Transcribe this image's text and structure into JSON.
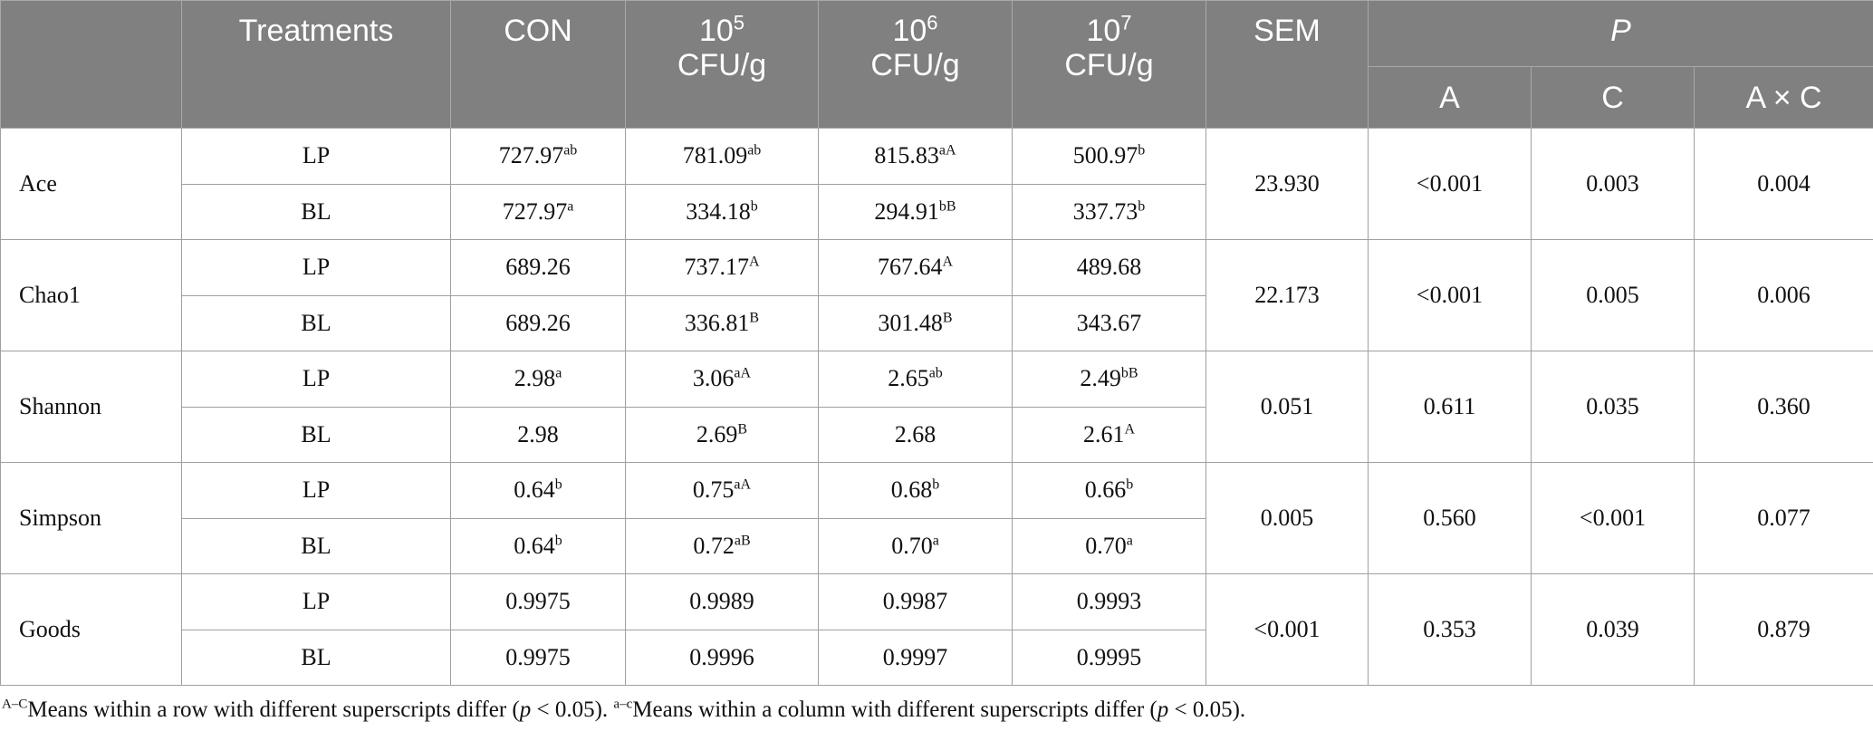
{
  "table": {
    "header": {
      "first": "Treatments",
      "con": "CON",
      "doses": [
        {
          "base": "10",
          "sup": "5",
          "unit": "CFU/g"
        },
        {
          "base": "10",
          "sup": "6",
          "unit": "CFU/g"
        },
        {
          "base": "10",
          "sup": "7",
          "unit": "CFU/g"
        }
      ],
      "sem": "SEM",
      "p": "P",
      "p_cols": [
        "A",
        "C",
        "A × C"
      ]
    },
    "rows": [
      {
        "label": "Ace",
        "sem": "23.930",
        "p": [
          "<0.001",
          "0.003",
          "0.004"
        ],
        "groups": [
          {
            "name": "LP",
            "cells": [
              {
                "v": "727.97",
                "s": "ab"
              },
              {
                "v": "781.09",
                "s": "ab"
              },
              {
                "v": "815.83",
                "s": "aA"
              },
              {
                "v": "500.97",
                "s": "b"
              }
            ]
          },
          {
            "name": "BL",
            "cells": [
              {
                "v": "727.97",
                "s": "a"
              },
              {
                "v": "334.18",
                "s": "b"
              },
              {
                "v": "294.91",
                "s": "bB"
              },
              {
                "v": "337.73",
                "s": "b"
              }
            ]
          }
        ]
      },
      {
        "label": "Chao1",
        "sem": "22.173",
        "p": [
          "<0.001",
          "0.005",
          "0.006"
        ],
        "groups": [
          {
            "name": "LP",
            "cells": [
              {
                "v": "689.26"
              },
              {
                "v": "737.17",
                "s": "A"
              },
              {
                "v": "767.64",
                "s": "A"
              },
              {
                "v": "489.68"
              }
            ]
          },
          {
            "name": "BL",
            "cells": [
              {
                "v": "689.26"
              },
              {
                "v": "336.81",
                "s": "B"
              },
              {
                "v": "301.48",
                "s": "B"
              },
              {
                "v": "343.67"
              }
            ]
          }
        ]
      },
      {
        "label": "Shannon",
        "sem": "0.051",
        "p": [
          "0.611",
          "0.035",
          "0.360"
        ],
        "groups": [
          {
            "name": "LP",
            "cells": [
              {
                "v": "2.98",
                "s": "a"
              },
              {
                "v": "3.06",
                "s": "aA"
              },
              {
                "v": "2.65",
                "s": "ab"
              },
              {
                "v": "2.49",
                "s": "bB"
              }
            ]
          },
          {
            "name": "BL",
            "cells": [
              {
                "v": "2.98"
              },
              {
                "v": "2.69",
                "s": "B"
              },
              {
                "v": "2.68"
              },
              {
                "v": "2.61",
                "s": "A"
              }
            ]
          }
        ]
      },
      {
        "label": "Simpson",
        "sem": "0.005",
        "p": [
          "0.560",
          "<0.001",
          "0.077"
        ],
        "groups": [
          {
            "name": "LP",
            "cells": [
              {
                "v": "0.64",
                "s": "b"
              },
              {
                "v": "0.75",
                "s": "aA"
              },
              {
                "v": "0.68",
                "s": "b"
              },
              {
                "v": "0.66",
                "s": "b"
              }
            ]
          },
          {
            "name": "BL",
            "cells": [
              {
                "v": "0.64",
                "s": "b"
              },
              {
                "v": "0.72",
                "s": "aB"
              },
              {
                "v": "0.70",
                "s": "a"
              },
              {
                "v": "0.70",
                "s": "a"
              }
            ]
          }
        ]
      },
      {
        "label": "Goods",
        "sem": "<0.001",
        "p": [
          "0.353",
          "0.039",
          "0.879"
        ],
        "groups": [
          {
            "name": "LP",
            "cells": [
              {
                "v": "0.9975"
              },
              {
                "v": "0.9989"
              },
              {
                "v": "0.9987"
              },
              {
                "v": "0.9993"
              }
            ]
          },
          {
            "name": "BL",
            "cells": [
              {
                "v": "0.9975"
              },
              {
                "v": "0.9996"
              },
              {
                "v": "0.9997"
              },
              {
                "v": "0.9995"
              }
            ]
          }
        ]
      }
    ]
  },
  "notes": [
    {
      "sup": "A–C",
      "before": "Means within a row with different superscripts differ (",
      "italic": "p",
      "after": " < 0.05). "
    },
    {
      "sup": "a–c",
      "before": "Means within a column with different superscripts differ (",
      "italic": "p",
      "after": " < 0.05)."
    }
  ]
}
